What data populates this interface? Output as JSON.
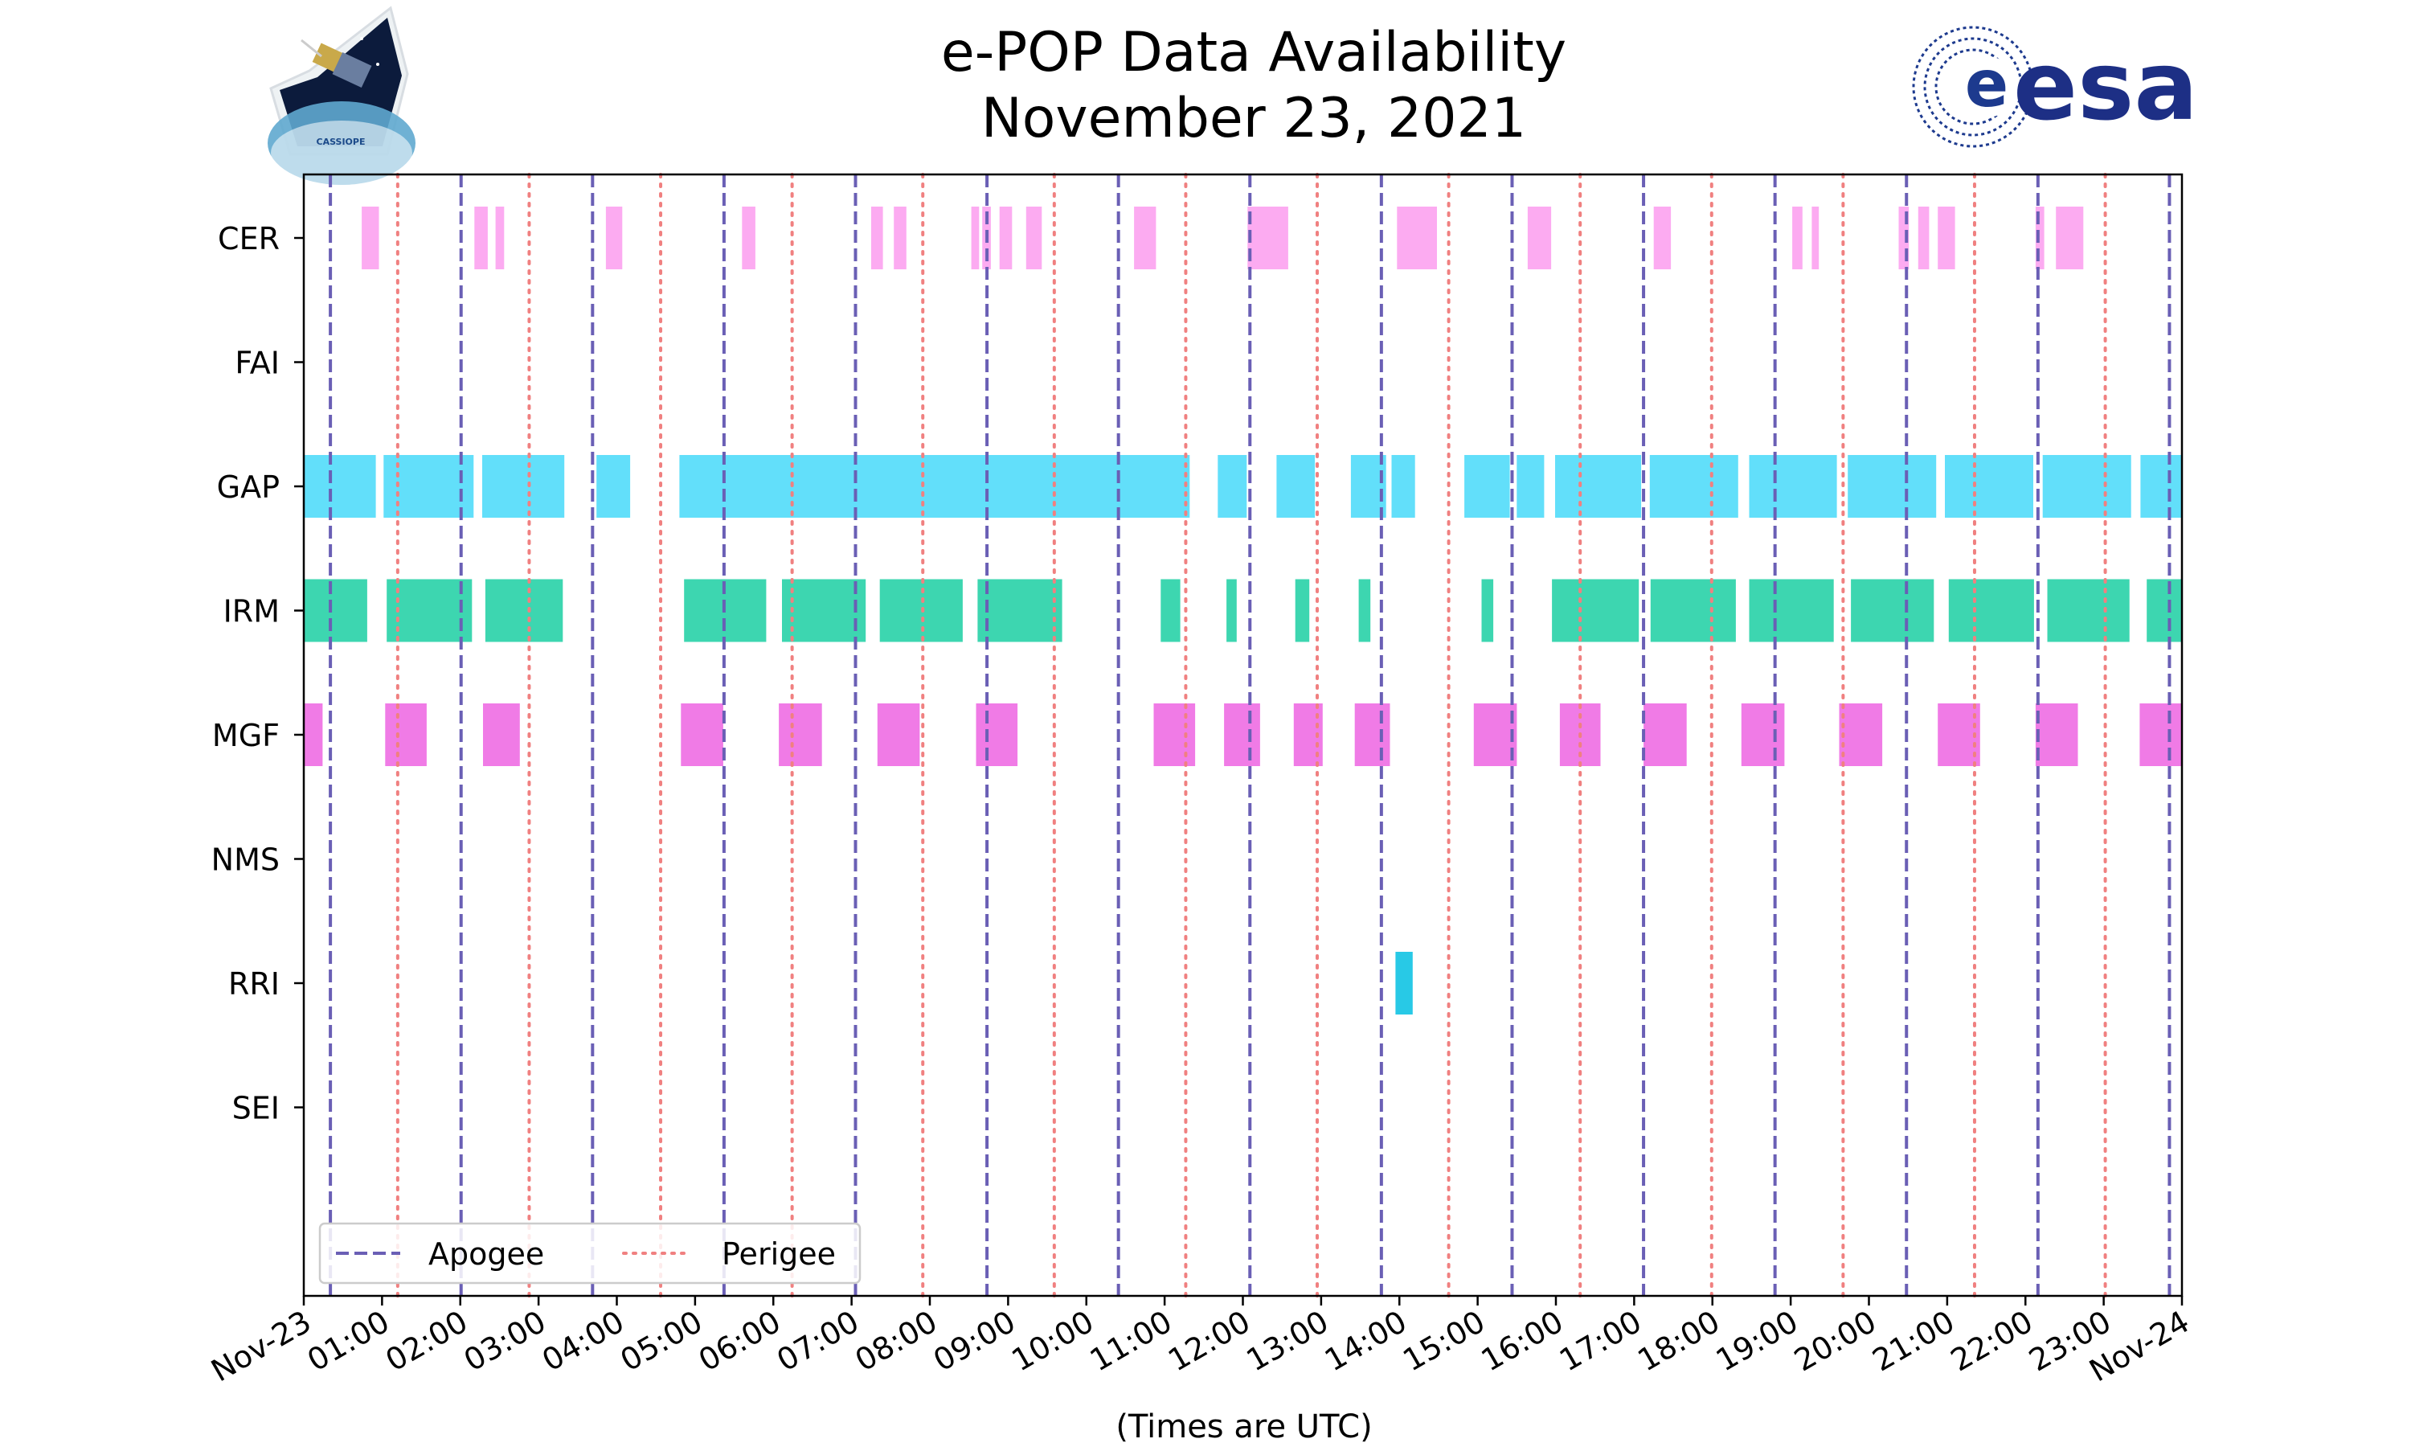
{
  "chart_data": {
    "type": "timeline",
    "title": "e-POP Data Availability",
    "subtitle": "November 23, 2021",
    "xlabel": "(Times are UTC)",
    "xlim_hours": [
      0,
      24
    ],
    "x_ticks": [
      "Nov-23",
      "01:00",
      "02:00",
      "03:00",
      "04:00",
      "05:00",
      "06:00",
      "07:00",
      "08:00",
      "09:00",
      "10:00",
      "11:00",
      "12:00",
      "13:00",
      "14:00",
      "15:00",
      "16:00",
      "17:00",
      "18:00",
      "19:00",
      "20:00",
      "21:00",
      "22:00",
      "23:00",
      "Nov-24"
    ],
    "instruments": [
      "CER",
      "FAI",
      "GAP",
      "IRM",
      "MGF",
      "NMS",
      "RRI",
      "SEI"
    ],
    "colors": {
      "CER": "#fcabf1",
      "FAI": "#fcabf1",
      "GAP": "#62dffa",
      "IRM": "#3dd6b0",
      "MGF": "#f07be6",
      "NMS": "#f07be6",
      "RRI": "#28c9e6",
      "SEI": "#f07be6",
      "apogee": "#6a5fb5",
      "perigee": "#f08080"
    },
    "apogee_hours": [
      0.34,
      2.01,
      3.69,
      5.37,
      7.05,
      8.73,
      10.41,
      12.09,
      13.77,
      15.44,
      17.12,
      18.8,
      20.48,
      22.16,
      23.84
    ],
    "perigee_hours": [
      1.2,
      2.88,
      4.56,
      6.24,
      7.91,
      9.59,
      11.27,
      12.95,
      14.63,
      16.31,
      17.99,
      19.67,
      21.35,
      23.02
    ],
    "intervals": {
      "CER": [
        [
          0.74,
          0.96
        ],
        [
          2.18,
          2.35
        ],
        [
          2.45,
          2.56
        ],
        [
          3.86,
          4.07
        ],
        [
          5.6,
          5.77
        ],
        [
          7.25,
          7.4
        ],
        [
          7.54,
          7.7
        ],
        [
          8.53,
          8.63
        ],
        [
          8.67,
          8.78
        ],
        [
          8.89,
          9.05
        ],
        [
          9.23,
          9.43
        ],
        [
          10.61,
          10.89
        ],
        [
          12.06,
          12.58
        ],
        [
          13.97,
          14.48
        ],
        [
          15.64,
          15.94
        ],
        [
          17.25,
          17.47
        ],
        [
          19.02,
          19.15
        ],
        [
          19.27,
          19.36
        ],
        [
          20.38,
          20.51
        ],
        [
          20.63,
          20.77
        ],
        [
          20.88,
          21.1
        ],
        [
          22.13,
          22.24
        ],
        [
          22.39,
          22.74
        ]
      ],
      "FAI": [],
      "GAP": [
        [
          0,
          0.92
        ],
        [
          1.02,
          2.17
        ],
        [
          2.28,
          3.33
        ],
        [
          3.74,
          4.17
        ],
        [
          4.8,
          11.32
        ],
        [
          11.68,
          12.05
        ],
        [
          12.43,
          12.92
        ],
        [
          13.38,
          13.83
        ],
        [
          13.9,
          14.2
        ],
        [
          14.83,
          15.41
        ],
        [
          15.5,
          15.85
        ],
        [
          15.99,
          17.09
        ],
        [
          17.2,
          18.33
        ],
        [
          18.47,
          19.59
        ],
        [
          19.73,
          20.86
        ],
        [
          20.97,
          22.1
        ],
        [
          22.22,
          23.35
        ],
        [
          23.47,
          24
        ]
      ],
      "IRM": [
        [
          0,
          0.81
        ],
        [
          1.06,
          2.15
        ],
        [
          2.32,
          3.31
        ],
        [
          4.86,
          5.91
        ],
        [
          6.11,
          7.18
        ],
        [
          7.36,
          8.42
        ],
        [
          8.61,
          9.69
        ],
        [
          10.95,
          11.2
        ],
        [
          11.79,
          11.92
        ],
        [
          12.67,
          12.85
        ],
        [
          13.48,
          13.63
        ],
        [
          15.05,
          15.2
        ],
        [
          15.95,
          17.06
        ],
        [
          17.21,
          18.3
        ],
        [
          18.47,
          19.55
        ],
        [
          19.77,
          20.83
        ],
        [
          21.02,
          22.11
        ],
        [
          22.28,
          23.33
        ],
        [
          23.55,
          24
        ]
      ],
      "MGF": [
        [
          0,
          0.24
        ],
        [
          1.04,
          1.57
        ],
        [
          2.29,
          2.76
        ],
        [
          4.82,
          5.36
        ],
        [
          6.07,
          6.62
        ],
        [
          7.33,
          7.87
        ],
        [
          8.59,
          9.12
        ],
        [
          10.86,
          11.39
        ],
        [
          11.76,
          12.22
        ],
        [
          12.65,
          13.02
        ],
        [
          13.43,
          13.88
        ],
        [
          14.95,
          15.5
        ],
        [
          16.05,
          16.57
        ],
        [
          17.12,
          17.67
        ],
        [
          18.37,
          18.92
        ],
        [
          19.62,
          20.17
        ],
        [
          20.88,
          21.42
        ],
        [
          22.13,
          22.67
        ],
        [
          23.46,
          24
        ]
      ],
      "NMS": [],
      "RRI": [
        [
          13.95,
          14.17
        ]
      ],
      "SEI": []
    },
    "legend": [
      "Apogee",
      "Perigee"
    ],
    "legend_position": "lower-left"
  },
  "logos": {
    "left": "CASSIOPE",
    "right": "esa"
  }
}
